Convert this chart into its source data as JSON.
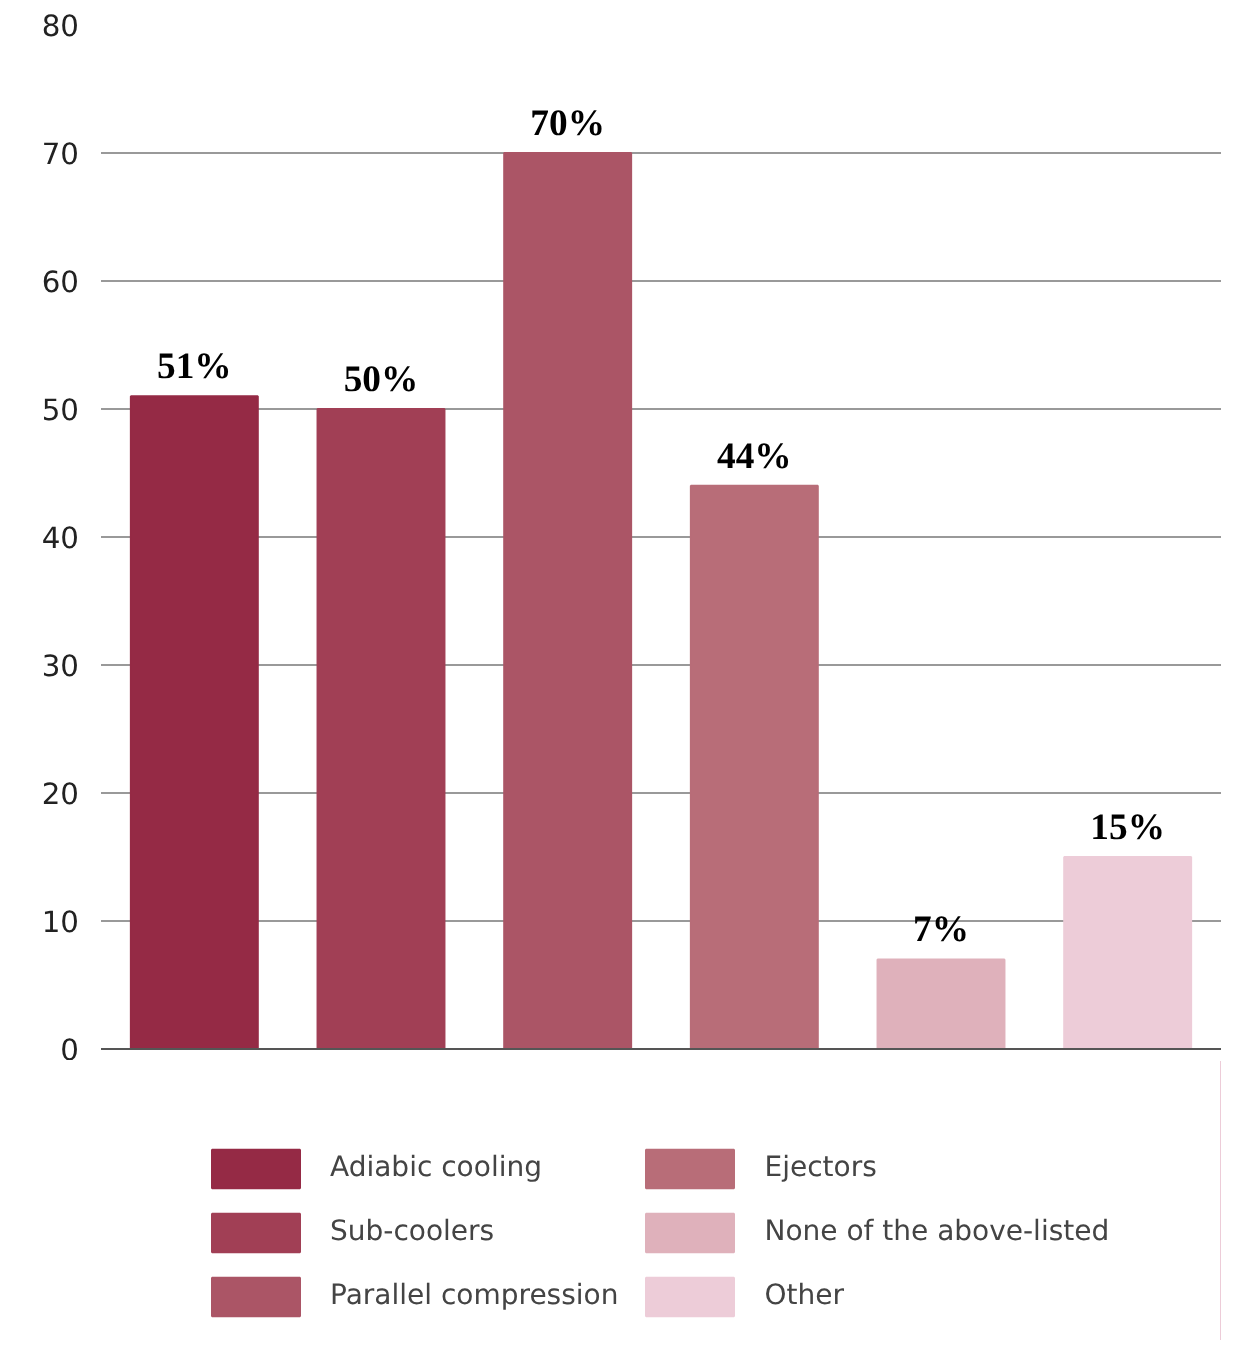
{
  "chart_data": {
    "type": "bar",
    "categories": [
      null,
      null,
      null,
      null,
      null,
      null
    ],
    "series": [
      {
        "name": "Adiabic cooling",
        "color": "#952a45",
        "values": [
          51,
          null,
          null,
          null,
          null,
          null
        ],
        "value_labels": [
          "51%",
          null,
          null,
          null,
          null,
          null
        ]
      },
      {
        "name": "Sub-coolers",
        "color": "#a13f55",
        "values": [
          null,
          50,
          null,
          null,
          null,
          null
        ],
        "value_labels": [
          null,
          "50%",
          null,
          null,
          null,
          null
        ]
      },
      {
        "name": "Parallel compression",
        "color": "#ab5566",
        "values": [
          null,
          null,
          70,
          null,
          null,
          null
        ],
        "value_labels": [
          null,
          null,
          "70%",
          null,
          null,
          null
        ]
      },
      {
        "name": "Ejectors",
        "color": "#b86d78",
        "values": [
          null,
          null,
          null,
          44,
          null,
          null
        ],
        "value_labels": [
          null,
          null,
          null,
          "44%",
          null,
          null
        ]
      },
      {
        "name": "None of the above-listed",
        "color": "#dfb1bb",
        "values": [
          null,
          null,
          null,
          null,
          7,
          null
        ],
        "value_labels": [
          null,
          null,
          null,
          null,
          "7%",
          null
        ]
      },
      {
        "name": "Other",
        "color": "#edccd8",
        "values": [
          null,
          null,
          null,
          null,
          null,
          15
        ],
        "value_labels": [
          null,
          null,
          null,
          null,
          null,
          "15%"
        ]
      }
    ],
    "ylim": [
      0,
      80
    ],
    "yticks": [
      0,
      10,
      20,
      30,
      40,
      50,
      60,
      70,
      80
    ],
    "grid": "y",
    "legend": "bottom"
  }
}
